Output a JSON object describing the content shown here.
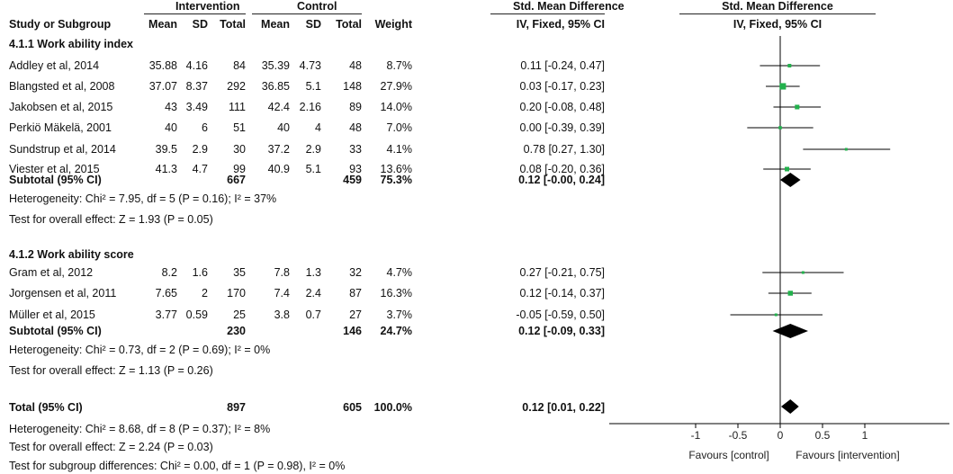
{
  "header": {
    "group1": "Intervention",
    "group2": "Control",
    "effect_header": "Std. Mean Difference",
    "plot_header": "Std. Mean Difference",
    "col_study": "Study or Subgroup",
    "col_mean1": "Mean",
    "col_sd1": "SD",
    "col_total1": "Total",
    "col_mean2": "Mean",
    "col_sd2": "SD",
    "col_total2": "Total",
    "col_weight": "Weight",
    "col_effect": "IV, Fixed, 95% CI",
    "plot_subheader": "IV, Fixed, 95% CI"
  },
  "subgroups": [
    {
      "title": "4.1.1 Work ability index",
      "studies": [
        {
          "name": "Addley et al, 2014",
          "mean1": "35.88",
          "sd1": "4.16",
          "total1": "84",
          "mean2": "35.39",
          "sd2": "4.73",
          "total2": "48",
          "weight": "8.7%",
          "ci_text": "0.11 [-0.24, 0.47]"
        },
        {
          "name": "Blangsted et al, 2008",
          "mean1": "37.07",
          "sd1": "8.37",
          "total1": "292",
          "mean2": "36.85",
          "sd2": "5.1",
          "total2": "148",
          "weight": "27.9%",
          "ci_text": "0.03 [-0.17, 0.23]"
        },
        {
          "name": "Jakobsen et al, 2015",
          "mean1": "43",
          "sd1": "3.49",
          "total1": "111",
          "mean2": "42.4",
          "sd2": "2.16",
          "total2": "89",
          "weight": "14.0%",
          "ci_text": "0.20 [-0.08, 0.48]"
        },
        {
          "name": "Perkiö Mäkelä, 2001",
          "mean1": "40",
          "sd1": "6",
          "total1": "51",
          "mean2": "40",
          "sd2": "4",
          "total2": "48",
          "weight": "7.0%",
          "ci_text": "0.00 [-0.39, 0.39]"
        },
        {
          "name": "Sundstrup et al, 2014",
          "mean1": "39.5",
          "sd1": "2.9",
          "total1": "30",
          "mean2": "37.2",
          "sd2": "2.9",
          "total2": "33",
          "weight": "4.1%",
          "ci_text": "0.78 [0.27, 1.30]"
        },
        {
          "name": "Viester et al, 2015",
          "mean1": "41.3",
          "sd1": "4.7",
          "total1": "99",
          "mean2": "40.9",
          "sd2": "5.1",
          "total2": "93",
          "weight": "13.6%",
          "ci_text": "0.08 [-0.20, 0.36]"
        }
      ],
      "subtotal": {
        "label": "Subtotal (95% CI)",
        "total1": "667",
        "total2": "459",
        "weight": "75.3%",
        "ci_text": "0.12 [-0.00, 0.24]"
      },
      "heterogeneity": "Heterogeneity: Chi² = 7.95, df = 5 (P = 0.16); I² = 37%",
      "overall_effect": "Test for overall effect: Z = 1.93 (P = 0.05)"
    },
    {
      "title": "4.1.2 Work ability score",
      "studies": [
        {
          "name": "Gram et al, 2012",
          "mean1": "8.2",
          "sd1": "1.6",
          "total1": "35",
          "mean2": "7.8",
          "sd2": "1.3",
          "total2": "32",
          "weight": "4.7%",
          "ci_text": "0.27 [-0.21, 0.75]"
        },
        {
          "name": "Jorgensen  et al, 2011",
          "mean1": "7.65",
          "sd1": "2",
          "total1": "170",
          "mean2": "7.4",
          "sd2": "2.4",
          "total2": "87",
          "weight": "16.3%",
          "ci_text": "0.12 [-0.14, 0.37]"
        },
        {
          "name": "Müller et al, 2015",
          "mean1": "3.77",
          "sd1": "0.59",
          "total1": "25",
          "mean2": "3.8",
          "sd2": "0.7",
          "total2": "27",
          "weight": "3.7%",
          "ci_text": "-0.05 [-0.59, 0.50]"
        }
      ],
      "subtotal": {
        "label": "Subtotal (95% CI)",
        "total1": "230",
        "total2": "146",
        "weight": "24.7%",
        "ci_text": "0.12 [-0.09, 0.33]"
      },
      "heterogeneity": "Heterogeneity: Chi² = 0.73, df = 2 (P = 0.69); I² = 0%",
      "overall_effect": "Test for overall effect: Z = 1.13 (P = 0.26)"
    }
  ],
  "total": {
    "label": "Total (95% CI)",
    "total1": "897",
    "total2": "605",
    "weight": "100.0%",
    "ci_text": "0.12 [0.01, 0.22]"
  },
  "total_heterogeneity": "Heterogeneity: Chi² = 8.68, df = 8 (P = 0.37); I² = 8%",
  "total_overall_effect": "Test for overall effect: Z = 2.24 (P = 0.03)",
  "subgroup_differences": "Test for subgroup differences: Chi² = 0.00, df = 1 (P = 0.98), I² = 0%",
  "chart_data": {
    "type": "forest",
    "xlim": [
      -1,
      1
    ],
    "xticks": [
      "-1",
      "-0.5",
      "0",
      "0.5",
      "1"
    ],
    "xtick_values": [
      -1,
      -0.5,
      0,
      0.5,
      1
    ],
    "label_left": "Favours [control]",
    "label_right": "Favours [intervention]",
    "square_color": "#22b14c",
    "diamond_color": "#000000",
    "studies": [
      {
        "name": "Addley et al, 2014",
        "smd": 0.11,
        "lo": -0.24,
        "hi": 0.47,
        "weight": 8.7
      },
      {
        "name": "Blangsted et al, 2008",
        "smd": 0.03,
        "lo": -0.17,
        "hi": 0.23,
        "weight": 27.9
      },
      {
        "name": "Jakobsen et al, 2015",
        "smd": 0.2,
        "lo": -0.08,
        "hi": 0.48,
        "weight": 14.0
      },
      {
        "name": "Perkiö Mäkelä, 2001",
        "smd": 0.0,
        "lo": -0.39,
        "hi": 0.39,
        "weight": 7.0
      },
      {
        "name": "Sundstrup et al, 2014",
        "smd": 0.78,
        "lo": 0.27,
        "hi": 1.3,
        "weight": 4.1
      },
      {
        "name": "Viester et al, 2015",
        "smd": 0.08,
        "lo": -0.2,
        "hi": 0.36,
        "weight": 13.6
      },
      {
        "name": "Gram et al, 2012",
        "smd": 0.27,
        "lo": -0.21,
        "hi": 0.75,
        "weight": 4.7
      },
      {
        "name": "Jorgensen  et al, 2011",
        "smd": 0.12,
        "lo": -0.14,
        "hi": 0.37,
        "weight": 16.3
      },
      {
        "name": "Müller et al, 2015",
        "smd": -0.05,
        "lo": -0.59,
        "hi": 0.5,
        "weight": 3.7
      }
    ],
    "pooled": [
      {
        "name": "Subtotal 4.1.1",
        "smd": 0.12,
        "lo": -0.0,
        "hi": 0.24
      },
      {
        "name": "Subtotal 4.1.2",
        "smd": 0.12,
        "lo": -0.09,
        "hi": 0.33
      },
      {
        "name": "Total",
        "smd": 0.12,
        "lo": 0.01,
        "hi": 0.22
      }
    ]
  }
}
